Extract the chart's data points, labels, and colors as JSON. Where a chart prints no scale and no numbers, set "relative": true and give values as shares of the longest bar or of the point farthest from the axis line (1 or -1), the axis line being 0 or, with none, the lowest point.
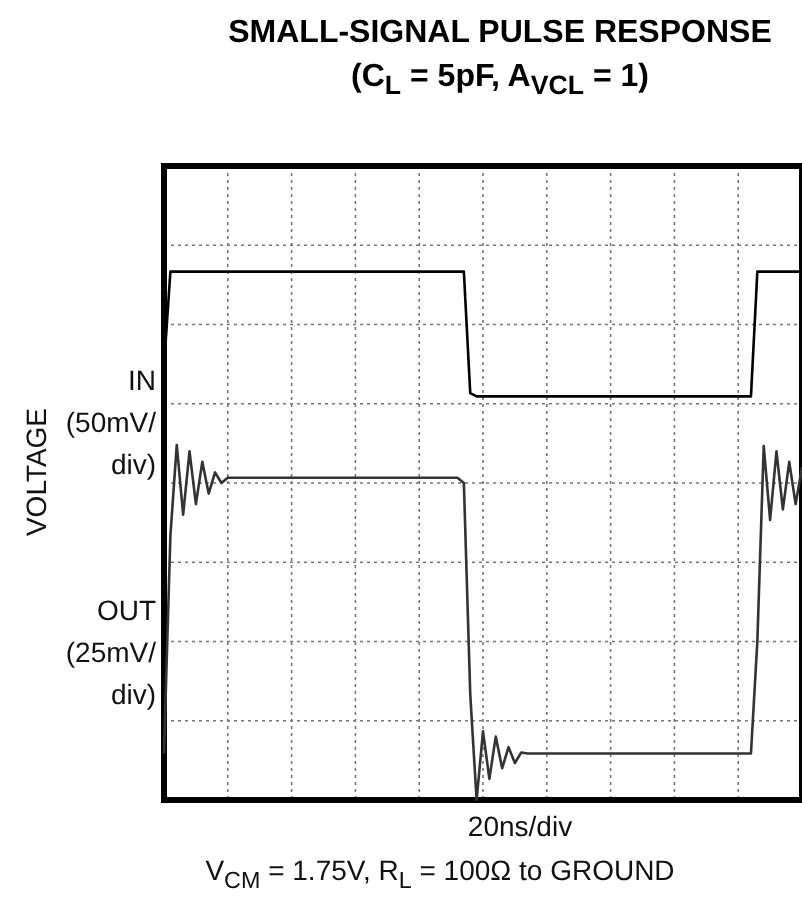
{
  "chart_data": {
    "type": "line",
    "title": "SMALL-SIGNAL PULSE RESPONSE",
    "subtitle": "(C$_{L}$ = 5pF, A$_{VCL}$ = 1)",
    "xlabel": "20ns/div",
    "ylabel": "VOLTAGE",
    "annotations": [
      "V$_{CM}$ = 1.75V, R$_{L}$ = 100Ω to GROUND"
    ],
    "relative": true,
    "grid": true,
    "legend": false,
    "marker": "none",
    "line_style": "solid",
    "categories": [
      null,
      null,
      null,
      null,
      null,
      null,
      null,
      null,
      null,
      null,
      null,
      null,
      null,
      null,
      null,
      null,
      null,
      null,
      null,
      null,
      null,
      null,
      null,
      null,
      null,
      null,
      null,
      null,
      null,
      null,
      null,
      null,
      null,
      null,
      null,
      null,
      null,
      null,
      null,
      null,
      null,
      null,
      null,
      null,
      null,
      null,
      null,
      null,
      null,
      null,
      null,
      null,
      null,
      null,
      null,
      null,
      null,
      null,
      null,
      null,
      null,
      null,
      null,
      null,
      null,
      null,
      null,
      null,
      null,
      null,
      null,
      null,
      null,
      null,
      null,
      null,
      null,
      null,
      null,
      null,
      null,
      null,
      null,
      null,
      null,
      null,
      null,
      null,
      null,
      null,
      null,
      null,
      null,
      null,
      null,
      null,
      null,
      null,
      null,
      null,
      null
    ],
    "series": [
      {
        "name": "IN (50mV/div)",
        "color": "#000000",
        "values": [
          0.82,
          1,
          1,
          1,
          1,
          1,
          1,
          1,
          1,
          1,
          1,
          1,
          1,
          1,
          1,
          1,
          1,
          1,
          1,
          1,
          1,
          1,
          1,
          1,
          1,
          1,
          1,
          1,
          1,
          1,
          1,
          1,
          1,
          1,
          1,
          1,
          1,
          1,
          1,
          1,
          1,
          1,
          1,
          1,
          1,
          1,
          1,
          1,
          0.77,
          0.764,
          0.764,
          0.764,
          0.764,
          0.764,
          0.764,
          0.764,
          0.764,
          0.764,
          0.764,
          0.764,
          0.764,
          0.764,
          0.764,
          0.764,
          0.764,
          0.764,
          0.764,
          0.764,
          0.764,
          0.764,
          0.764,
          0.764,
          0.764,
          0.764,
          0.764,
          0.764,
          0.764,
          0.764,
          0.764,
          0.764,
          0.764,
          0.764,
          0.764,
          0.764,
          0.764,
          0.764,
          0.764,
          0.764,
          0.764,
          0.764,
          0.764,
          0.764,
          0.764,
          1,
          1,
          1,
          1,
          1,
          1,
          1,
          1
        ]
      },
      {
        "name": "OUT (25mV/div)",
        "color": "#333333",
        "values": [
          0.088,
          0.5,
          0.672,
          0.54,
          0.66,
          0.56,
          0.64,
          0.58,
          0.62,
          0.6,
          0.61,
          0.61,
          0.61,
          0.61,
          0.61,
          0.61,
          0.61,
          0.61,
          0.61,
          0.61,
          0.61,
          0.61,
          0.61,
          0.61,
          0.61,
          0.61,
          0.61,
          0.61,
          0.61,
          0.61,
          0.61,
          0.61,
          0.61,
          0.61,
          0.61,
          0.61,
          0.61,
          0.61,
          0.61,
          0.61,
          0.61,
          0.61,
          0.61,
          0.61,
          0.61,
          0.61,
          0.61,
          0.6,
          0.2,
          0,
          0.13,
          0.04,
          0.12,
          0.06,
          0.1,
          0.07,
          0.09,
          0.088,
          0.088,
          0.088,
          0.088,
          0.088,
          0.088,
          0.088,
          0.088,
          0.088,
          0.088,
          0.088,
          0.088,
          0.088,
          0.088,
          0.088,
          0.088,
          0.088,
          0.088,
          0.088,
          0.088,
          0.088,
          0.088,
          0.088,
          0.088,
          0.088,
          0.088,
          0.088,
          0.088,
          0.088,
          0.088,
          0.088,
          0.088,
          0.088,
          0.088,
          0.088,
          0.088,
          0.3,
          0.67,
          0.53,
          0.66,
          0.55,
          0.64,
          0.56,
          0.63
        ]
      }
    ]
  }
}
